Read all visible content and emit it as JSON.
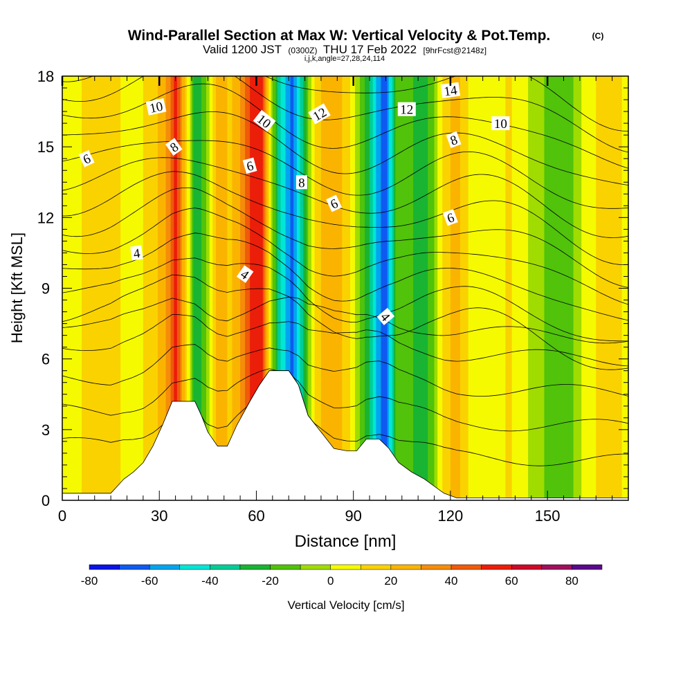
{
  "chart_data": {
    "type": "heatmap",
    "title": "Wind-Parallel Section at Max W: Vertical Velocity & Pot.Temp.",
    "title_mark": "(C)",
    "subtitle": {
      "valid": "Valid 1200 JST",
      "utc": "(0300Z)",
      "date": "THU 17 Feb 2022",
      "forecast": "[9hrFcst@2148z]"
    },
    "indices": "i,j,k,angle=27,28,24,114",
    "xlabel": "Distance [nm]",
    "ylabel": "Height [Kft MSL]",
    "xlim": [
      0,
      175
    ],
    "ylim": [
      0,
      18
    ],
    "x_ticks": [
      0,
      30,
      60,
      90,
      120,
      150
    ],
    "y_ticks": [
      0,
      3,
      6,
      9,
      12,
      15,
      18
    ],
    "colorbar": {
      "label": "Vertical Velocity [cm/s]",
      "bounds": [
        -80,
        -70,
        -60,
        -50,
        -40,
        -30,
        -20,
        -10,
        0,
        10,
        20,
        30,
        40,
        50,
        60,
        70,
        80,
        90
      ],
      "tick_labels": [
        "-80",
        "-60",
        "-40",
        "-20",
        "0",
        "20",
        "40",
        "60",
        "80"
      ],
      "colors": [
        "#0a14e6",
        "#0f5af0",
        "#00a5f0",
        "#00e6d7",
        "#00cd96",
        "#19b432",
        "#50c30a",
        "#a0dc00",
        "#f5fa00",
        "#fad200",
        "#fab400",
        "#f58c0a",
        "#f05a0a",
        "#eb1e0a",
        "#cd0a28",
        "#a0105a",
        "#5a0a8c"
      ]
    },
    "velocity_bands": [
      {
        "x": 0,
        "w": 0
      },
      {
        "x": 6,
        "w": 10
      },
      {
        "x": 14,
        "w": 12
      },
      {
        "x": 22,
        "w": 8
      },
      {
        "x": 28,
        "w": 12
      },
      {
        "x": 33,
        "w": 35
      },
      {
        "x": 35,
        "w": 55
      },
      {
        "x": 38,
        "w": 20
      },
      {
        "x": 41,
        "w": -25
      },
      {
        "x": 44,
        "w": -18
      },
      {
        "x": 48,
        "w": 25
      },
      {
        "x": 52,
        "w": 18
      },
      {
        "x": 56,
        "w": 35
      },
      {
        "x": 59,
        "w": 55
      },
      {
        "x": 62,
        "w": 50
      },
      {
        "x": 65,
        "w": -10
      },
      {
        "x": 68,
        "w": -45
      },
      {
        "x": 71,
        "w": -65
      },
      {
        "x": 74,
        "w": -35
      },
      {
        "x": 78,
        "w": 12
      },
      {
        "x": 82,
        "w": 28
      },
      {
        "x": 86,
        "w": 22
      },
      {
        "x": 90,
        "w": 5
      },
      {
        "x": 94,
        "w": -22
      },
      {
        "x": 97,
        "w": -50
      },
      {
        "x": 100,
        "w": -70
      },
      {
        "x": 103,
        "w": -20
      },
      {
        "x": 107,
        "w": -12
      },
      {
        "x": 110,
        "w": -28
      },
      {
        "x": 114,
        "w": -18
      },
      {
        "x": 118,
        "w": 15
      },
      {
        "x": 122,
        "w": 25
      },
      {
        "x": 126,
        "w": 8
      },
      {
        "x": 132,
        "w": 2
      },
      {
        "x": 138,
        "w": 12
      },
      {
        "x": 144,
        "w": 0
      },
      {
        "x": 150,
        "w": -12
      },
      {
        "x": 156,
        "w": -18
      },
      {
        "x": 162,
        "w": 5
      },
      {
        "x": 168,
        "w": 15
      },
      {
        "x": 175,
        "w": 8
      }
    ],
    "terrain": [
      [
        0,
        0.3
      ],
      [
        15,
        0.3
      ],
      [
        17,
        0.6
      ],
      [
        19,
        0.9
      ],
      [
        22,
        1.2
      ],
      [
        25,
        1.6
      ],
      [
        28,
        2.3
      ],
      [
        31,
        3.2
      ],
      [
        34,
        4.2
      ],
      [
        39,
        4.2
      ],
      [
        41,
        4.2
      ],
      [
        43,
        3.6
      ],
      [
        45,
        2.9
      ],
      [
        48,
        2.3
      ],
      [
        51,
        2.3
      ],
      [
        54,
        3.2
      ],
      [
        58,
        4.2
      ],
      [
        61,
        4.9
      ],
      [
        64,
        5.5
      ],
      [
        70,
        5.5
      ],
      [
        73,
        4.9
      ],
      [
        76,
        3.6
      ],
      [
        80,
        2.9
      ],
      [
        84,
        2.2
      ],
      [
        88,
        2.1
      ],
      [
        91,
        2.1
      ],
      [
        94,
        2.6
      ],
      [
        98,
        2.6
      ],
      [
        101,
        2.2
      ],
      [
        104,
        1.6
      ],
      [
        108,
        1.2
      ],
      [
        112,
        0.9
      ],
      [
        115,
        0.6
      ],
      [
        118,
        0.3
      ],
      [
        122,
        0.1
      ],
      [
        175,
        0.1
      ]
    ],
    "theta_labels": [
      {
        "text": "10",
        "x": 29,
        "y": 16.7,
        "angle": -12
      },
      {
        "text": "8",
        "x": 34.5,
        "y": 15.0,
        "angle": -35
      },
      {
        "text": "6",
        "x": 7.5,
        "y": 14.5,
        "angle": -25
      },
      {
        "text": "4",
        "x": 23,
        "y": 10.5,
        "angle": -8
      },
      {
        "text": "10",
        "x": 62.5,
        "y": 16.1,
        "angle": 38
      },
      {
        "text": "12",
        "x": 79.5,
        "y": 16.4,
        "angle": -30
      },
      {
        "text": "6",
        "x": 58,
        "y": 14.2,
        "angle": -15
      },
      {
        "text": "8",
        "x": 74,
        "y": 13.5,
        "angle": 0
      },
      {
        "text": "6",
        "x": 84,
        "y": 12.6,
        "angle": -25
      },
      {
        "text": "4",
        "x": 56.5,
        "y": 9.6,
        "angle": 35
      },
      {
        "text": "4",
        "x": 100,
        "y": 7.8,
        "angle": 50
      },
      {
        "text": "12",
        "x": 106.5,
        "y": 16.6,
        "angle": 0
      },
      {
        "text": "14",
        "x": 120,
        "y": 17.4,
        "angle": -8
      },
      {
        "text": "10",
        "x": 135.5,
        "y": 16.0,
        "angle": 0
      },
      {
        "text": "8",
        "x": 121,
        "y": 15.3,
        "angle": -20
      },
      {
        "text": "6",
        "x": 120,
        "y": 12.0,
        "angle": -20
      }
    ]
  }
}
